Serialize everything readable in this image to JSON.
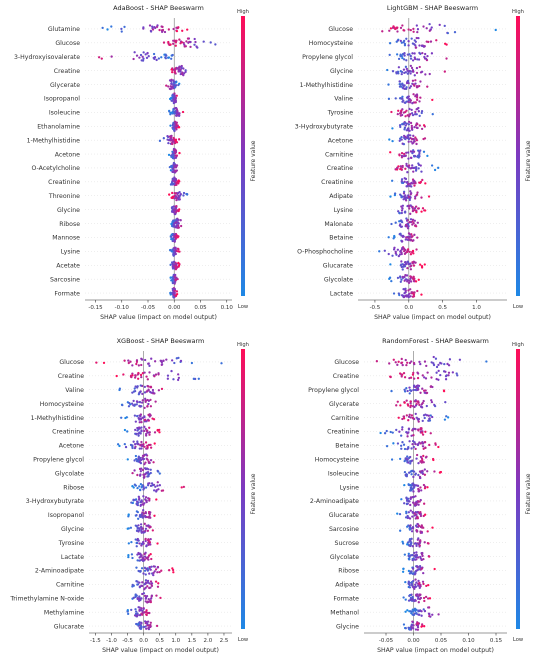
{
  "colors": {
    "low": "#1e88e5",
    "high": "#ff0d57",
    "axis": "#333333",
    "zero": "#888888",
    "row_line": "#dddddd"
  },
  "colorbar": {
    "high_label": "High",
    "low_label": "Low",
    "title": "Feature value"
  },
  "chart_data": [
    {
      "type": "scatter",
      "title": "AdaBoost - SHAP Beeswarm",
      "xlabel": "SHAP value (impact on model output)",
      "xlim": [
        -0.17,
        0.11
      ],
      "xticks": [
        -0.15,
        -0.1,
        -0.05,
        0.0,
        0.05,
        0.1
      ],
      "xtick_labels": [
        "-0.15",
        "-0.10",
        "-0.05",
        "0.00",
        "0.05",
        "0.10"
      ],
      "features": [
        "Glutamine",
        "Glucose",
        "3-Hydroxyisovalerate",
        "Creatine",
        "Glycerate",
        "Isopropanol",
        "Isoleucine",
        "Ethanolamine",
        "1-Methylhistidine",
        "Acetone",
        "O-Acetylcholine",
        "Creatinine",
        "Threonine",
        "Glycine",
        "Ribose",
        "Mannose",
        "Lysine",
        "Acetate",
        "Sarcosine",
        "Formate"
      ],
      "spread": [
        {
          "min": -0.14,
          "max": 0.03,
          "lowSide": "left"
        },
        {
          "min": -0.02,
          "max": 0.095,
          "lowSide": "right"
        },
        {
          "min": -0.15,
          "max": 0.005,
          "lowSide": "right"
        },
        {
          "min": -0.01,
          "max": 0.04,
          "lowSide": "right"
        },
        {
          "min": -0.02,
          "max": 0.01,
          "lowSide": "right"
        },
        {
          "min": -0.008,
          "max": 0.008,
          "lowSide": "left"
        },
        {
          "min": -0.01,
          "max": 0.022,
          "lowSide": "left"
        },
        {
          "min": -0.008,
          "max": 0.01,
          "lowSide": "left"
        },
        {
          "min": -0.03,
          "max": 0.01,
          "lowSide": "left"
        },
        {
          "min": -0.01,
          "max": 0.01,
          "lowSide": "left"
        },
        {
          "min": -0.01,
          "max": 0.01,
          "lowSide": "left"
        },
        {
          "min": -0.01,
          "max": 0.01,
          "lowSide": "left"
        },
        {
          "min": -0.01,
          "max": 0.025,
          "lowSide": "right"
        },
        {
          "min": -0.01,
          "max": 0.01,
          "lowSide": "left"
        },
        {
          "min": -0.01,
          "max": 0.02,
          "lowSide": "left"
        },
        {
          "min": -0.008,
          "max": 0.008,
          "lowSide": "left"
        },
        {
          "min": -0.008,
          "max": 0.01,
          "lowSide": "left"
        },
        {
          "min": -0.01,
          "max": 0.01,
          "lowSide": "left"
        },
        {
          "min": -0.008,
          "max": 0.008,
          "lowSide": "left"
        },
        {
          "min": -0.008,
          "max": 0.006,
          "lowSide": "left"
        }
      ]
    },
    {
      "type": "scatter",
      "title": "LightGBM - SHAP Beeswarm",
      "xlabel": "SHAP value (impact on model output)",
      "xlim": [
        -0.75,
        1.45
      ],
      "xticks": [
        -0.5,
        0.0,
        0.5,
        1.0
      ],
      "xtick_labels": [
        "-0.5",
        "0.0",
        "0.5",
        "1.0"
      ],
      "features": [
        "Glucose",
        "Homocysteine",
        "Propylene glycol",
        "Glycine",
        "1-Methylhistidine",
        "Valine",
        "Tyrosine",
        "3-Hydroxybutyrate",
        "Acetone",
        "Carnitine",
        "Creatine",
        "Creatinine",
        "Adipate",
        "Lysine",
        "Malonate",
        "Betaine",
        "O-Phosphocholine",
        "Glucarate",
        "Glycolate",
        "Lactate"
      ],
      "spread": [
        {
          "min": -0.6,
          "max": 1.3,
          "lowSide": "right"
        },
        {
          "min": -0.4,
          "max": 0.6,
          "lowSide": "left"
        },
        {
          "min": -0.35,
          "max": 0.7,
          "lowSide": "left"
        },
        {
          "min": -0.45,
          "max": 0.6,
          "lowSide": "left"
        },
        {
          "min": -0.3,
          "max": 0.35,
          "lowSide": "left"
        },
        {
          "min": -0.3,
          "max": 0.35,
          "lowSide": "left"
        },
        {
          "min": -0.3,
          "max": 0.45,
          "lowSide": "right"
        },
        {
          "min": -0.3,
          "max": 0.3,
          "lowSide": "left"
        },
        {
          "min": -0.3,
          "max": 0.3,
          "lowSide": "left"
        },
        {
          "min": -0.3,
          "max": 0.35,
          "lowSide": "right"
        },
        {
          "min": -0.3,
          "max": 0.45,
          "lowSide": "right"
        },
        {
          "min": -0.25,
          "max": 0.25,
          "lowSide": "left"
        },
        {
          "min": -0.3,
          "max": 0.3,
          "lowSide": "left"
        },
        {
          "min": -0.35,
          "max": 0.25,
          "lowSide": "left"
        },
        {
          "min": -0.3,
          "max": 0.25,
          "lowSide": "left"
        },
        {
          "min": -0.3,
          "max": 0.2,
          "lowSide": "left"
        },
        {
          "min": -0.5,
          "max": 0.15,
          "lowSide": "left"
        },
        {
          "min": -0.3,
          "max": 0.25,
          "lowSide": "left"
        },
        {
          "min": -0.3,
          "max": 0.2,
          "lowSide": "left"
        },
        {
          "min": -0.25,
          "max": 0.2,
          "lowSide": "left"
        }
      ]
    },
    {
      "type": "scatter",
      "title": "XGBoost - SHAP Beeswarm",
      "xlabel": "SHAP value (impact on model output)",
      "xlim": [
        -1.7,
        2.75
      ],
      "xticks": [
        -1.5,
        -1.0,
        -0.5,
        0.0,
        0.5,
        1.0,
        1.5,
        2.0,
        2.5
      ],
      "xtick_labels": [
        "-1.5",
        "-1.0",
        "-0.5",
        "0.0",
        "0.5",
        "1.0",
        "1.5",
        "2.0",
        "2.5"
      ],
      "features": [
        "Glucose",
        "Creatine",
        "Valine",
        "Homocysteine",
        "1-Methylhistidine",
        "Creatinine",
        "Acetone",
        "Propylene glycol",
        "Glycolate",
        "Ribose",
        "3-Hydroxybutyrate",
        "Isopropanol",
        "Glycine",
        "Tyrosine",
        "Lactate",
        "2-Aminoadipate",
        "Carnitine",
        "Trimethylamine N-oxide",
        "Methylamine",
        "Glucarate"
      ],
      "spread": [
        {
          "min": -1.5,
          "max": 2.6,
          "lowSide": "right"
        },
        {
          "min": -0.9,
          "max": 2.5,
          "lowSide": "right"
        },
        {
          "min": -0.8,
          "max": 0.8,
          "lowSide": "left"
        },
        {
          "min": -0.8,
          "max": 0.8,
          "lowSide": "left"
        },
        {
          "min": -0.7,
          "max": 0.5,
          "lowSide": "left"
        },
        {
          "min": -0.6,
          "max": 0.5,
          "lowSide": "left"
        },
        {
          "min": -0.8,
          "max": 0.4,
          "lowSide": "left"
        },
        {
          "min": -0.6,
          "max": 0.6,
          "lowSide": "left"
        },
        {
          "min": -0.6,
          "max": 0.6,
          "lowSide": "right"
        },
        {
          "min": -0.5,
          "max": 1.3,
          "lowSide": "left"
        },
        {
          "min": -0.5,
          "max": 0.4,
          "lowSide": "left"
        },
        {
          "min": -0.5,
          "max": 0.5,
          "lowSide": "left"
        },
        {
          "min": -0.5,
          "max": 0.5,
          "lowSide": "left"
        },
        {
          "min": -0.5,
          "max": 0.5,
          "lowSide": "left"
        },
        {
          "min": -0.5,
          "max": 0.4,
          "lowSide": "left"
        },
        {
          "min": -0.5,
          "max": 1.0,
          "lowSide": "left"
        },
        {
          "min": -0.5,
          "max": 0.6,
          "lowSide": "left"
        },
        {
          "min": -0.6,
          "max": 0.6,
          "lowSide": "left"
        },
        {
          "min": -0.6,
          "max": 0.3,
          "lowSide": "left"
        },
        {
          "min": -0.4,
          "max": 0.5,
          "lowSide": "left"
        }
      ]
    },
    {
      "type": "scatter",
      "title": "RandomForest - SHAP Beeswarm",
      "xlabel": "SHAP value (impact on model output)",
      "xlim": [
        -0.09,
        0.17
      ],
      "xticks": [
        -0.05,
        0.0,
        0.05,
        0.1,
        0.15
      ],
      "xtick_labels": [
        "-0.05",
        "0.00",
        "0.05",
        "0.10",
        "0.15"
      ],
      "features": [
        "Glucose",
        "Creatine",
        "Propylene glycol",
        "Glycerate",
        "Carnitine",
        "Creatinine",
        "Betaine",
        "Homocysteine",
        "Isoleucine",
        "Lysine",
        "2-Aminoadipate",
        "Glucarate",
        "Sarcosine",
        "Sucrose",
        "Glycolate",
        "Ribose",
        "Adipate",
        "Formate",
        "Methanol",
        "Glycine"
      ],
      "spread": [
        {
          "min": -0.08,
          "max": 0.16,
          "lowSide": "right"
        },
        {
          "min": -0.05,
          "max": 0.15,
          "lowSide": "right"
        },
        {
          "min": -0.04,
          "max": 0.06,
          "lowSide": "left"
        },
        {
          "min": -0.04,
          "max": 0.09,
          "lowSide": "right"
        },
        {
          "min": -0.04,
          "max": 0.07,
          "lowSide": "right"
        },
        {
          "min": -0.06,
          "max": 0.04,
          "lowSide": "left"
        },
        {
          "min": -0.05,
          "max": 0.05,
          "lowSide": "left"
        },
        {
          "min": -0.04,
          "max": 0.04,
          "lowSide": "left"
        },
        {
          "min": -0.03,
          "max": 0.05,
          "lowSide": "left"
        },
        {
          "min": -0.02,
          "max": 0.03,
          "lowSide": "left"
        },
        {
          "min": -0.03,
          "max": 0.03,
          "lowSide": "left"
        },
        {
          "min": -0.03,
          "max": 0.03,
          "lowSide": "left"
        },
        {
          "min": -0.03,
          "max": 0.04,
          "lowSide": "left"
        },
        {
          "min": -0.02,
          "max": 0.03,
          "lowSide": "left"
        },
        {
          "min": -0.02,
          "max": 0.04,
          "lowSide": "left"
        },
        {
          "min": -0.02,
          "max": 0.04,
          "lowSide": "left"
        },
        {
          "min": -0.02,
          "max": 0.03,
          "lowSide": "left"
        },
        {
          "min": -0.02,
          "max": 0.03,
          "lowSide": "left"
        },
        {
          "min": -0.02,
          "max": 0.07,
          "lowSide": "left"
        },
        {
          "min": -0.02,
          "max": 0.02,
          "lowSide": "left"
        }
      ]
    }
  ]
}
